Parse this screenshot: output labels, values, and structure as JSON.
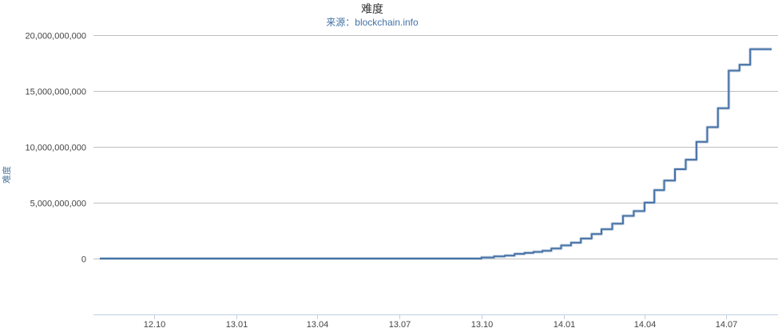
{
  "chart_data": {
    "type": "line",
    "title": "难度",
    "subtitle": "来源：blockchain.info",
    "xlabel": "",
    "ylabel": "难度",
    "ylim": [
      -5000000000,
      20000000000
    ],
    "yticks": [
      0,
      5000000000,
      10000000000,
      15000000000,
      20000000000
    ],
    "ytick_labels": [
      "0",
      "5,000,000,000",
      "10,000,000,000",
      "15,000,000,000",
      "20,000,000,000"
    ],
    "xticks": [
      "12.10",
      "13.01",
      "13.04",
      "13.07",
      "13.10",
      "14.01",
      "14.04",
      "14.07"
    ],
    "xlim": [
      "2012-07-25",
      "2014-08-28"
    ],
    "grid": true,
    "legend": "none",
    "line_color": "#4572a7",
    "series": [
      {
        "x": [
          "2012-08-01",
          "2013-10-01",
          "2013-10-15",
          "2013-10-27",
          "2013-11-07",
          "2013-11-18",
          "2013-11-28",
          "2013-12-08",
          "2013-12-18",
          "2013-12-29",
          "2014-01-09",
          "2014-01-20",
          "2014-02-01",
          "2014-02-12",
          "2014-02-24",
          "2014-03-08",
          "2014-03-20",
          "2014-04-01",
          "2014-04-12",
          "2014-04-23",
          "2014-05-05",
          "2014-05-17",
          "2014-05-29",
          "2014-06-10",
          "2014-06-22",
          "2014-07-04",
          "2014-07-16",
          "2014-07-28",
          "2014-08-09",
          "2014-08-21"
        ],
        "y": [
          3000000,
          100000000,
          190000000,
          270000000,
          420000000,
          510000000,
          600000000,
          700000000,
          900000000,
          1180000000,
          1420000000,
          1790000000,
          2190000000,
          2620000000,
          3130000000,
          3820000000,
          4250000000,
          5010000000,
          6120000000,
          6980000000,
          8000000000,
          8850000000,
          10450000000,
          11760000000,
          13460000000,
          16820000000,
          17350000000,
          18740000000,
          18740000000,
          18740000000
        ]
      }
    ]
  }
}
